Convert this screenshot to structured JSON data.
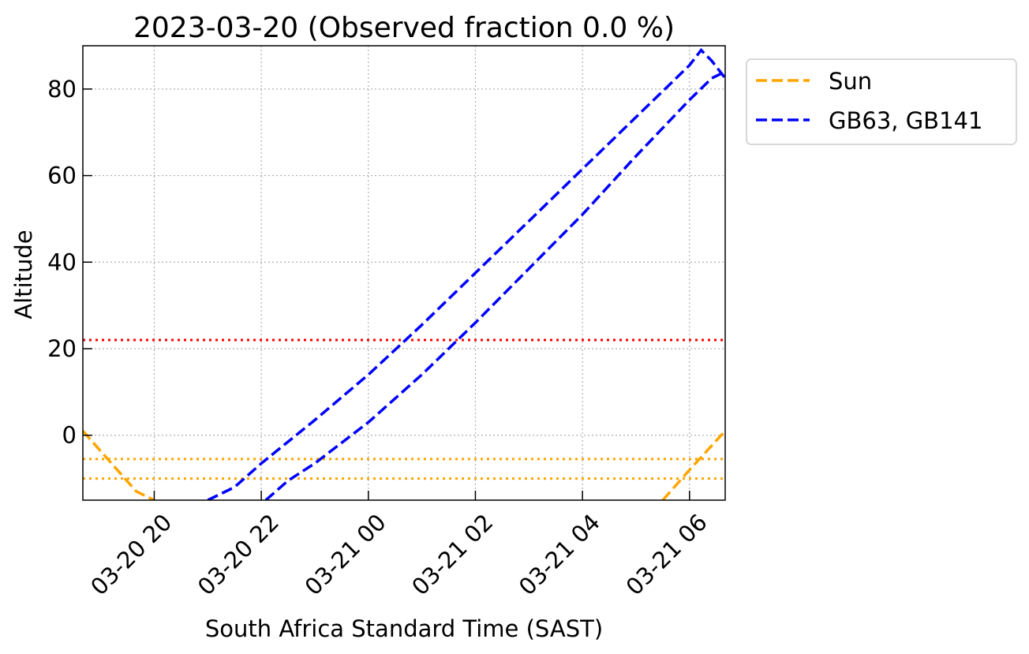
{
  "chart_data": {
    "type": "line",
    "title": "2023-03-20 (Observed fraction 0.0 %)",
    "xlabel": "South Africa Standard Time (SAST)",
    "ylabel": "Altitude",
    "x_unit": "hours",
    "xlim": [
      "03-20 18:40",
      "03-21 06:40"
    ],
    "ylim": [
      -15,
      90
    ],
    "x_ticks": [
      {
        "t": "03-20 20:00",
        "label": "03-20 20"
      },
      {
        "t": "03-20 22:00",
        "label": "03-20 22"
      },
      {
        "t": "03-21 00:00",
        "label": "03-21 00"
      },
      {
        "t": "03-21 02:00",
        "label": "03-21 02"
      },
      {
        "t": "03-21 04:00",
        "label": "03-21 04"
      },
      {
        "t": "03-21 06:00",
        "label": "03-21 06"
      }
    ],
    "y_ticks": [
      0,
      20,
      40,
      60,
      80
    ],
    "grid": true,
    "legend_position": "outside upper-right",
    "series": [
      {
        "name": "Sun",
        "color": "#FFA500",
        "dash": "dashed",
        "segments": [
          [
            [
              "03-20 18:40",
              1.0
            ],
            [
              "03-20 19:10",
              -6.0
            ],
            [
              "03-20 19:40",
              -13.0
            ],
            [
              "03-20 20:00",
              -15.0
            ]
          ],
          [
            [
              "03-21 05:30",
              -15.0
            ],
            [
              "03-21 06:00",
              -8.0
            ],
            [
              "03-21 06:40",
              1.0
            ]
          ]
        ]
      },
      {
        "name": "GB63, GB141",
        "color": "#0000FF",
        "dash": "dashed",
        "segments": [
          [
            [
              "03-20 21:00",
              -15.0
            ],
            [
              "03-20 21:30",
              -12.0
            ],
            [
              "03-20 22:00",
              -6.5
            ],
            [
              "03-20 23:00",
              3.5
            ],
            [
              "03-21 00:00",
              14.0
            ],
            [
              "03-21 01:00",
              25.5
            ],
            [
              "03-21 02:00",
              37.5
            ],
            [
              "03-21 03:00",
              49.5
            ],
            [
              "03-21 04:00",
              61.5
            ],
            [
              "03-21 05:00",
              73.5
            ],
            [
              "03-21 06:00",
              85.5
            ],
            [
              "03-21 06:13",
              89.0
            ],
            [
              "03-21 06:25",
              86.5
            ],
            [
              "03-21 06:40",
              82.5
            ]
          ],
          [
            [
              "03-20 22:05",
              -15.0
            ],
            [
              "03-20 22:30",
              -10.5
            ],
            [
              "03-20 23:00",
              -6.5
            ],
            [
              "03-21 00:00",
              3.0
            ],
            [
              "03-21 01:00",
              14.0
            ],
            [
              "03-21 02:00",
              26.0
            ],
            [
              "03-21 03:00",
              38.5
            ],
            [
              "03-21 04:00",
              51.0
            ],
            [
              "03-21 05:00",
              64.5
            ],
            [
              "03-21 06:00",
              77.5
            ],
            [
              "03-21 06:25",
              82.5
            ],
            [
              "03-21 06:40",
              84.0
            ]
          ]
        ]
      }
    ],
    "reference_lines": [
      {
        "y": 22,
        "color": "#FF0000",
        "style": "dotted"
      },
      {
        "y": -5.5,
        "color": "#FFA500",
        "style": "dotted"
      },
      {
        "y": -10,
        "color": "#FFA500",
        "style": "dotted"
      }
    ]
  }
}
